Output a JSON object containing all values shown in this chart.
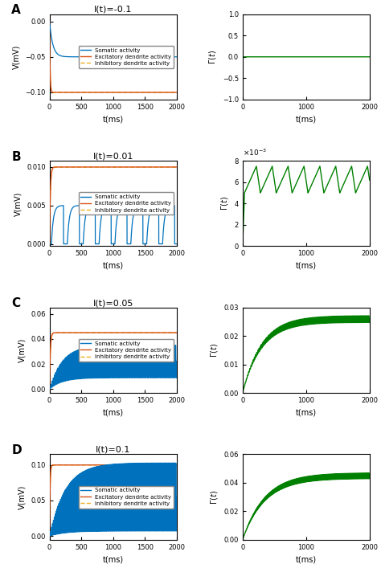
{
  "rows": [
    {
      "label": "A",
      "title": "I(t)=-0.1",
      "I": -0.1,
      "V_ylim": [
        -0.11,
        0.01
      ],
      "V_yticks": [
        0,
        -0.05,
        -0.1
      ],
      "gamma_ylim": [
        -1,
        1
      ],
      "gamma_yticks": [
        -1,
        -0.5,
        0,
        0.5,
        1
      ]
    },
    {
      "label": "B",
      "title": "I(t)=0.01",
      "I": 0.01,
      "V_ylim": [
        -0.0003,
        0.0108
      ],
      "V_yticks": [
        0,
        0.005,
        0.01
      ],
      "gamma_ylim": [
        0,
        0.008
      ],
      "gamma_yticks": [
        0,
        0.002,
        0.004,
        0.006,
        0.008
      ]
    },
    {
      "label": "C",
      "title": "I(t)=0.05",
      "I": 0.05,
      "V_ylim": [
        -0.003,
        0.065
      ],
      "V_yticks": [
        0,
        0.02,
        0.04,
        0.06
      ],
      "gamma_ylim": [
        0,
        0.03
      ],
      "gamma_yticks": [
        0,
        0.01,
        0.02,
        0.03
      ]
    },
    {
      "label": "D",
      "title": "I(t)=0.1",
      "I": 0.1,
      "V_ylim": [
        -0.005,
        0.115
      ],
      "V_yticks": [
        0,
        0.05,
        0.1
      ],
      "gamma_ylim": [
        0,
        0.06
      ],
      "gamma_yticks": [
        0,
        0.02,
        0.04,
        0.06
      ]
    }
  ],
  "t_max": 2000,
  "dt": 0.5,
  "color_soma": "#0072BD",
  "color_exc": "#D95319",
  "color_inh": "#EDB120",
  "color_gamma": "#008000",
  "legend_labels": [
    "Somatic activity",
    "Excitatory dendrite activity",
    "Inhibitory dendrite activity"
  ]
}
